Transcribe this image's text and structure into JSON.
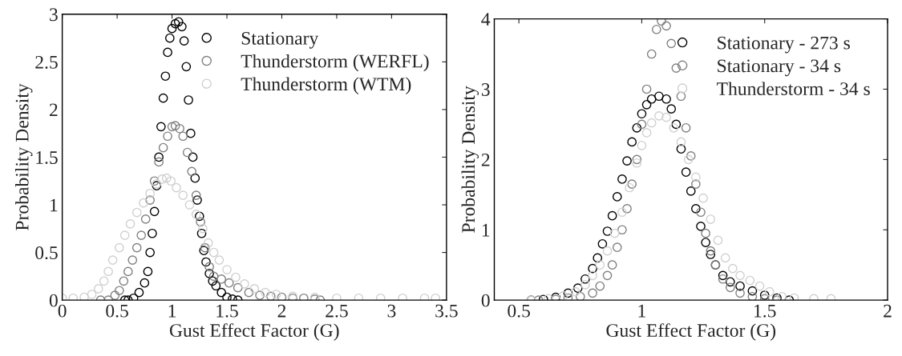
{
  "chart_data": [
    {
      "type": "scatter",
      "xlabel": "Gust Effect Factor (G)",
      "ylabel": "Probability Density",
      "xlim": [
        0,
        3.5
      ],
      "ylim": [
        0,
        3
      ],
      "xticks": [
        0,
        0.5,
        1,
        1.5,
        2,
        2.5,
        3,
        3.5
      ],
      "yticks": [
        0,
        0.5,
        1,
        1.5,
        2,
        2.5,
        3
      ],
      "marker": "circle",
      "legend": "top right",
      "grid": false,
      "series": [
        {
          "name": "Stationary",
          "color": "#000000",
          "x": [
            0.57,
            0.6,
            0.65,
            0.7,
            0.75,
            0.78,
            0.8,
            0.82,
            0.84,
            0.86,
            0.88,
            0.9,
            0.92,
            0.94,
            0.96,
            0.98,
            1.0,
            1.03,
            1.06,
            1.09,
            1.11,
            1.13,
            1.15,
            1.17,
            1.19,
            1.21,
            1.23,
            1.25,
            1.27,
            1.29,
            1.31,
            1.34,
            1.37,
            1.4,
            1.45,
            1.5,
            1.55,
            1.6
          ],
          "values": [
            0,
            0,
            0.02,
            0.08,
            0.18,
            0.3,
            0.5,
            0.7,
            0.93,
            1.2,
            1.5,
            1.82,
            2.12,
            2.35,
            2.6,
            2.75,
            2.85,
            2.9,
            2.92,
            2.87,
            2.72,
            2.45,
            2.1,
            1.75,
            1.5,
            1.28,
            1.05,
            0.88,
            0.7,
            0.52,
            0.4,
            0.28,
            0.2,
            0.15,
            0.08,
            0.03,
            0.01,
            0
          ]
        },
        {
          "name": "Thunderstorm (WERFL)",
          "color": "#808080",
          "x": [
            0.35,
            0.42,
            0.48,
            0.52,
            0.56,
            0.6,
            0.64,
            0.68,
            0.72,
            0.76,
            0.8,
            0.84,
            0.88,
            0.92,
            0.96,
            1.0,
            1.03,
            1.07,
            1.1,
            1.14,
            1.18,
            1.22,
            1.26,
            1.3,
            1.34,
            1.38,
            1.45,
            1.52,
            1.6,
            1.7,
            1.8,
            1.9,
            2.0,
            2.1,
            2.2,
            2.3,
            2.35
          ],
          "values": [
            0,
            0,
            0.05,
            0.1,
            0.2,
            0.3,
            0.42,
            0.55,
            0.68,
            0.85,
            1.05,
            1.25,
            1.45,
            1.6,
            1.72,
            1.82,
            1.83,
            1.8,
            1.72,
            1.55,
            1.35,
            1.1,
            0.82,
            0.55,
            0.35,
            0.25,
            0.22,
            0.18,
            0.13,
            0.08,
            0.05,
            0.04,
            0.03,
            0.02,
            0.02,
            0.01,
            0
          ]
        },
        {
          "name": "Thunderstorm (WTM)",
          "color": "#d0d0d0",
          "x": [
            0,
            0.1,
            0.2,
            0.27,
            0.33,
            0.38,
            0.42,
            0.46,
            0.52,
            0.57,
            0.62,
            0.68,
            0.74,
            0.8,
            0.86,
            0.91,
            0.95,
            0.99,
            1.04,
            1.1,
            1.16,
            1.22,
            1.28,
            1.33,
            1.38,
            1.43,
            1.5,
            1.58,
            1.66,
            1.75,
            1.85,
            1.95,
            2.1,
            2.3,
            2.5,
            2.7,
            2.9,
            3.1,
            3.3,
            3.4
          ],
          "values": [
            0.02,
            0.02,
            0.03,
            0.06,
            0.12,
            0.2,
            0.3,
            0.42,
            0.55,
            0.68,
            0.8,
            0.92,
            1.02,
            1.12,
            1.22,
            1.27,
            1.28,
            1.25,
            1.18,
            1.1,
            1.0,
            0.9,
            0.75,
            0.6,
            0.5,
            0.42,
            0.32,
            0.24,
            0.17,
            0.12,
            0.08,
            0.06,
            0.04,
            0.03,
            0.02,
            0.02,
            0.02,
            0.02,
            0.02,
            0.02
          ]
        }
      ]
    },
    {
      "type": "scatter",
      "xlabel": "Gust Effect Factor (G)",
      "ylabel": "Probability Density",
      "xlim": [
        0.4,
        2
      ],
      "ylim": [
        0,
        4
      ],
      "xticks": [
        0.5,
        1,
        1.5,
        2
      ],
      "yticks": [
        0,
        1,
        2,
        3,
        4
      ],
      "marker": "circle",
      "legend": "top right",
      "grid": false,
      "series": [
        {
          "name": "Stationary - 273 s",
          "color": "#000000",
          "x": [
            0.55,
            0.6,
            0.65,
            0.7,
            0.74,
            0.77,
            0.8,
            0.82,
            0.84,
            0.86,
            0.88,
            0.9,
            0.92,
            0.94,
            0.96,
            0.98,
            1.0,
            1.02,
            1.04,
            1.07,
            1.1,
            1.12,
            1.14,
            1.16,
            1.18,
            1.2,
            1.22,
            1.24,
            1.26,
            1.28,
            1.3,
            1.33,
            1.36,
            1.4,
            1.45,
            1.5,
            1.55,
            1.6
          ],
          "values": [
            0,
            0.01,
            0.04,
            0.1,
            0.17,
            0.3,
            0.45,
            0.6,
            0.8,
            0.98,
            1.2,
            1.47,
            1.72,
            1.98,
            2.25,
            2.45,
            2.65,
            2.78,
            2.86,
            2.9,
            2.86,
            2.72,
            2.5,
            2.15,
            1.82,
            1.55,
            1.3,
            1.05,
            0.82,
            0.65,
            0.5,
            0.35,
            0.26,
            0.2,
            0.13,
            0.07,
            0.03,
            0
          ]
        },
        {
          "name": "Stationary - 34 s",
          "color": "#808080",
          "x": [
            0.58,
            0.65,
            0.7,
            0.75,
            0.8,
            0.83,
            0.86,
            0.88,
            0.9,
            0.92,
            0.94,
            0.96,
            0.98,
            1.0,
            1.02,
            1.04,
            1.06,
            1.08,
            1.1,
            1.12,
            1.14,
            1.16,
            1.18,
            1.2,
            1.22,
            1.24,
            1.26,
            1.28,
            1.3,
            1.33,
            1.36,
            1.4,
            1.45,
            1.5,
            1.55
          ],
          "values": [
            0,
            0.01,
            0.03,
            0.05,
            0.1,
            0.2,
            0.35,
            0.5,
            0.75,
            1.0,
            1.3,
            1.65,
            2.0,
            2.5,
            3.0,
            3.5,
            3.85,
            3.97,
            3.9,
            3.65,
            3.3,
            2.9,
            2.45,
            2.05,
            1.65,
            1.25,
            0.95,
            0.7,
            0.5,
            0.3,
            0.18,
            0.1,
            0.05,
            0.02,
            0
          ]
        },
        {
          "name": "Thunderstorm - 34 s",
          "color": "#d0d0d0",
          "x": [
            0.55,
            0.62,
            0.68,
            0.73,
            0.77,
            0.8,
            0.83,
            0.86,
            0.89,
            0.92,
            0.95,
            0.98,
            1.0,
            1.02,
            1.04,
            1.07,
            1.1,
            1.13,
            1.16,
            1.19,
            1.22,
            1.25,
            1.28,
            1.31,
            1.34,
            1.37,
            1.4,
            1.44,
            1.48,
            1.52,
            1.57,
            1.62,
            1.7,
            1.77
          ],
          "values": [
            0,
            0.02,
            0.06,
            0.12,
            0.22,
            0.35,
            0.5,
            0.7,
            0.95,
            1.25,
            1.6,
            1.95,
            2.2,
            2.38,
            2.52,
            2.62,
            2.6,
            2.45,
            2.25,
            2.0,
            1.75,
            1.45,
            1.15,
            0.85,
            0.6,
            0.45,
            0.35,
            0.28,
            0.2,
            0.12,
            0.05,
            0.03,
            0.02,
            0.02
          ]
        }
      ]
    }
  ]
}
